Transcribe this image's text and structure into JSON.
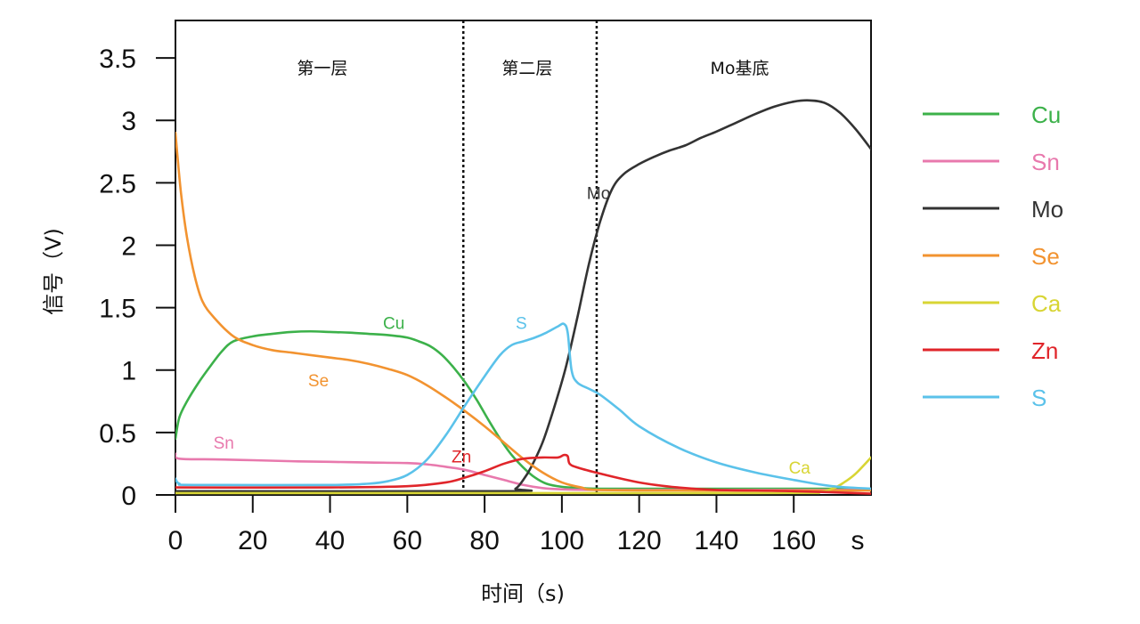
{
  "chart_data": {
    "type": "line",
    "xlabel": "时间（s)",
    "xunit_tick": "s",
    "ylabel": "信号（V)",
    "xlim": [
      0,
      180
    ],
    "ylim": [
      0,
      3.8
    ],
    "x_ticks": [
      0,
      20,
      40,
      60,
      80,
      100,
      120,
      140,
      160
    ],
    "y_ticks": [
      {
        "value": 0,
        "label": "0"
      },
      {
        "value": 0.5,
        "label": "0.5"
      },
      {
        "value": 1,
        "label": "1"
      },
      {
        "value": 1.5,
        "label": "1.5"
      },
      {
        "value": 2,
        "label": "2"
      },
      {
        "value": 2.5,
        "label": "2.5"
      },
      {
        "value": 3,
        "label": "3"
      },
      {
        "value": 3.5,
        "label": "3.5"
      }
    ],
    "dividers": [
      74.5,
      109
    ],
    "regions": [
      {
        "label": "第一层",
        "x": 38
      },
      {
        "label": "第二层",
        "x": 91
      },
      {
        "label": "Mo基底",
        "x": 146
      }
    ],
    "series": [
      {
        "name": "Cu",
        "color": "#3cb14a",
        "points": [
          [
            0,
            0.45
          ],
          [
            1,
            0.62
          ],
          [
            3,
            0.75
          ],
          [
            6,
            0.9
          ],
          [
            9,
            1.03
          ],
          [
            12,
            1.15
          ],
          [
            15,
            1.23
          ],
          [
            20,
            1.27
          ],
          [
            25,
            1.29
          ],
          [
            30,
            1.305
          ],
          [
            35,
            1.31
          ],
          [
            40,
            1.305
          ],
          [
            45,
            1.3
          ],
          [
            50,
            1.29
          ],
          [
            55,
            1.28
          ],
          [
            60,
            1.26
          ],
          [
            63,
            1.23
          ],
          [
            66,
            1.19
          ],
          [
            69,
            1.12
          ],
          [
            72,
            1.02
          ],
          [
            75,
            0.9
          ],
          [
            78,
            0.76
          ],
          [
            81,
            0.6
          ],
          [
            84,
            0.45
          ],
          [
            87,
            0.32
          ],
          [
            90,
            0.22
          ],
          [
            93,
            0.14
          ],
          [
            96,
            0.09
          ],
          [
            100,
            0.065
          ],
          [
            105,
            0.055
          ],
          [
            110,
            0.05
          ],
          [
            130,
            0.05
          ],
          [
            160,
            0.05
          ],
          [
            180,
            0.05
          ]
        ],
        "annotation": {
          "text": "Cu",
          "x": 56.5,
          "y": 1.38
        }
      },
      {
        "name": "Sn",
        "color": "#e879ad",
        "points": [
          [
            0,
            0.33
          ],
          [
            1,
            0.29
          ],
          [
            10,
            0.285
          ],
          [
            20,
            0.278
          ],
          [
            30,
            0.27
          ],
          [
            40,
            0.265
          ],
          [
            50,
            0.26
          ],
          [
            60,
            0.255
          ],
          [
            65,
            0.245
          ],
          [
            70,
            0.225
          ],
          [
            75,
            0.2
          ],
          [
            80,
            0.16
          ],
          [
            85,
            0.12
          ],
          [
            90,
            0.08
          ],
          [
            95,
            0.055
          ],
          [
            100,
            0.045
          ],
          [
            110,
            0.04
          ],
          [
            140,
            0.04
          ],
          [
            180,
            0.04
          ]
        ],
        "annotation": {
          "text": "Sn",
          "x": 12.5,
          "y": 0.42
        }
      },
      {
        "name": "Mo",
        "color": "#333333",
        "points": [
          [
            0,
            0.03
          ],
          [
            85,
            0.03
          ],
          [
            88,
            0.05
          ],
          [
            90,
            0.12
          ],
          [
            92,
            0.22
          ],
          [
            95,
            0.42
          ],
          [
            98,
            0.7
          ],
          [
            101,
            1.02
          ],
          [
            104,
            1.42
          ],
          [
            107,
            1.85
          ],
          [
            110,
            2.2
          ],
          [
            113,
            2.45
          ],
          [
            116,
            2.57
          ],
          [
            120,
            2.65
          ],
          [
            124,
            2.71
          ],
          [
            128,
            2.76
          ],
          [
            132,
            2.8
          ],
          [
            136,
            2.86
          ],
          [
            140,
            2.91
          ],
          [
            145,
            2.98
          ],
          [
            150,
            3.05
          ],
          [
            155,
            3.11
          ],
          [
            160,
            3.15
          ],
          [
            164,
            3.16
          ],
          [
            168,
            3.14
          ],
          [
            172,
            3.06
          ],
          [
            176,
            2.93
          ],
          [
            180,
            2.77
          ]
        ],
        "annotation": {
          "text": "Mo",
          "x": 109.5,
          "y": 2.42
        }
      },
      {
        "name": "Se",
        "color": "#f29330",
        "points": [
          [
            0,
            2.9
          ],
          [
            0.5,
            2.72
          ],
          [
            1.5,
            2.4
          ],
          [
            3,
            2.06
          ],
          [
            5,
            1.75
          ],
          [
            7,
            1.55
          ],
          [
            10,
            1.42
          ],
          [
            15,
            1.27
          ],
          [
            20,
            1.2
          ],
          [
            25,
            1.16
          ],
          [
            30,
            1.14
          ],
          [
            35,
            1.12
          ],
          [
            40,
            1.1
          ],
          [
            45,
            1.08
          ],
          [
            50,
            1.05
          ],
          [
            55,
            1.01
          ],
          [
            60,
            0.96
          ],
          [
            65,
            0.88
          ],
          [
            70,
            0.78
          ],
          [
            75,
            0.67
          ],
          [
            80,
            0.55
          ],
          [
            85,
            0.42
          ],
          [
            90,
            0.29
          ],
          [
            95,
            0.18
          ],
          [
            100,
            0.1
          ],
          [
            105,
            0.06
          ],
          [
            110,
            0.04
          ],
          [
            140,
            0.035
          ],
          [
            180,
            0.035
          ]
        ],
        "annotation": {
          "text": "Se",
          "x": 37,
          "y": 0.92
        }
      },
      {
        "name": "Ca",
        "color": "#d8d534",
        "points": [
          [
            0,
            0.015
          ],
          [
            150,
            0.015
          ],
          [
            165,
            0.02
          ],
          [
            170,
            0.05
          ],
          [
            173,
            0.1
          ],
          [
            176,
            0.17
          ],
          [
            180,
            0.3
          ]
        ],
        "annotation": {
          "text": "Ca",
          "x": 161.5,
          "y": 0.22
        }
      },
      {
        "name": "Zn",
        "color": "#e0252a",
        "points": [
          [
            0,
            0.06
          ],
          [
            40,
            0.06
          ],
          [
            60,
            0.07
          ],
          [
            70,
            0.1
          ],
          [
            75,
            0.14
          ],
          [
            80,
            0.19
          ],
          [
            85,
            0.25
          ],
          [
            90,
            0.29
          ],
          [
            95,
            0.3
          ],
          [
            99,
            0.3
          ],
          [
            100.5,
            0.32
          ],
          [
            101.5,
            0.31
          ],
          [
            102,
            0.25
          ],
          [
            104,
            0.22
          ],
          [
            110,
            0.17
          ],
          [
            120,
            0.1
          ],
          [
            130,
            0.06
          ],
          [
            140,
            0.04
          ],
          [
            160,
            0.03
          ],
          [
            180,
            0.01
          ]
        ],
        "annotation": {
          "text": "Zn",
          "x": 74,
          "y": 0.31
        }
      },
      {
        "name": "S",
        "color": "#5bc2ea",
        "points": [
          [
            0,
            0.13
          ],
          [
            1,
            0.09
          ],
          [
            5,
            0.08
          ],
          [
            40,
            0.08
          ],
          [
            50,
            0.09
          ],
          [
            55,
            0.11
          ],
          [
            60,
            0.16
          ],
          [
            65,
            0.28
          ],
          [
            70,
            0.48
          ],
          [
            75,
            0.72
          ],
          [
            80,
            0.95
          ],
          [
            84,
            1.12
          ],
          [
            87,
            1.2
          ],
          [
            90,
            1.23
          ],
          [
            93,
            1.26
          ],
          [
            96,
            1.3
          ],
          [
            99,
            1.35
          ],
          [
            100.5,
            1.37
          ],
          [
            101.5,
            1.3
          ],
          [
            102.5,
            1.0
          ],
          [
            104,
            0.9
          ],
          [
            107,
            0.85
          ],
          [
            110,
            0.8
          ],
          [
            115,
            0.68
          ],
          [
            120,
            0.55
          ],
          [
            130,
            0.38
          ],
          [
            140,
            0.26
          ],
          [
            150,
            0.18
          ],
          [
            160,
            0.12
          ],
          [
            170,
            0.07
          ],
          [
            180,
            0.05
          ]
        ],
        "annotation": {
          "text": "S",
          "x": 89.5,
          "y": 1.38
        }
      }
    ]
  }
}
